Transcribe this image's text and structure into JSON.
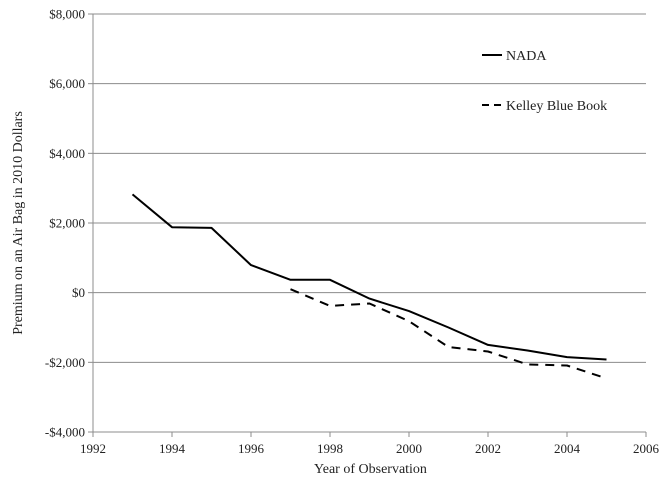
{
  "chart_data": {
    "type": "line",
    "xlabel": "Year of Observation",
    "ylabel": "Premium on an Air Bag in 2010 Dollars",
    "xlim": [
      1992,
      2006
    ],
    "ylim": [
      -4000,
      8000
    ],
    "x_ticks": [
      1992,
      1994,
      1996,
      1998,
      2000,
      2002,
      2004,
      2006
    ],
    "x_tick_labels": [
      "1992",
      "1994",
      "1996",
      "1998",
      "2000",
      "2002",
      "2004",
      "2006"
    ],
    "y_ticks": [
      -4000,
      -2000,
      0,
      2000,
      4000,
      6000,
      8000
    ],
    "y_tick_labels": [
      "-$4,000",
      "-$2,000",
      "$0",
      "$2,000",
      "$4,000",
      "$6,000",
      "$8,000"
    ],
    "grid": "horizontal",
    "legend_position": "top-right",
    "series": [
      {
        "name": "NADA",
        "style": "solid",
        "color": "#000000",
        "x": [
          1993,
          1994,
          1995,
          1996,
          1997,
          1998,
          1999,
          2000,
          2001,
          2002,
          2003,
          2004,
          2005
        ],
        "y": [
          2820,
          1880,
          1860,
          790,
          370,
          370,
          -170,
          -530,
          -1000,
          -1500,
          -1660,
          -1850,
          -1920
        ]
      },
      {
        "name": "Kelley Blue Book",
        "style": "dashed",
        "color": "#000000",
        "x": [
          1997,
          1998,
          1999,
          2000,
          2001,
          2002,
          2003,
          2004,
          2005
        ],
        "y": [
          100,
          -380,
          -310,
          -820,
          -1560,
          -1690,
          -2060,
          -2090,
          -2460
        ]
      }
    ]
  }
}
